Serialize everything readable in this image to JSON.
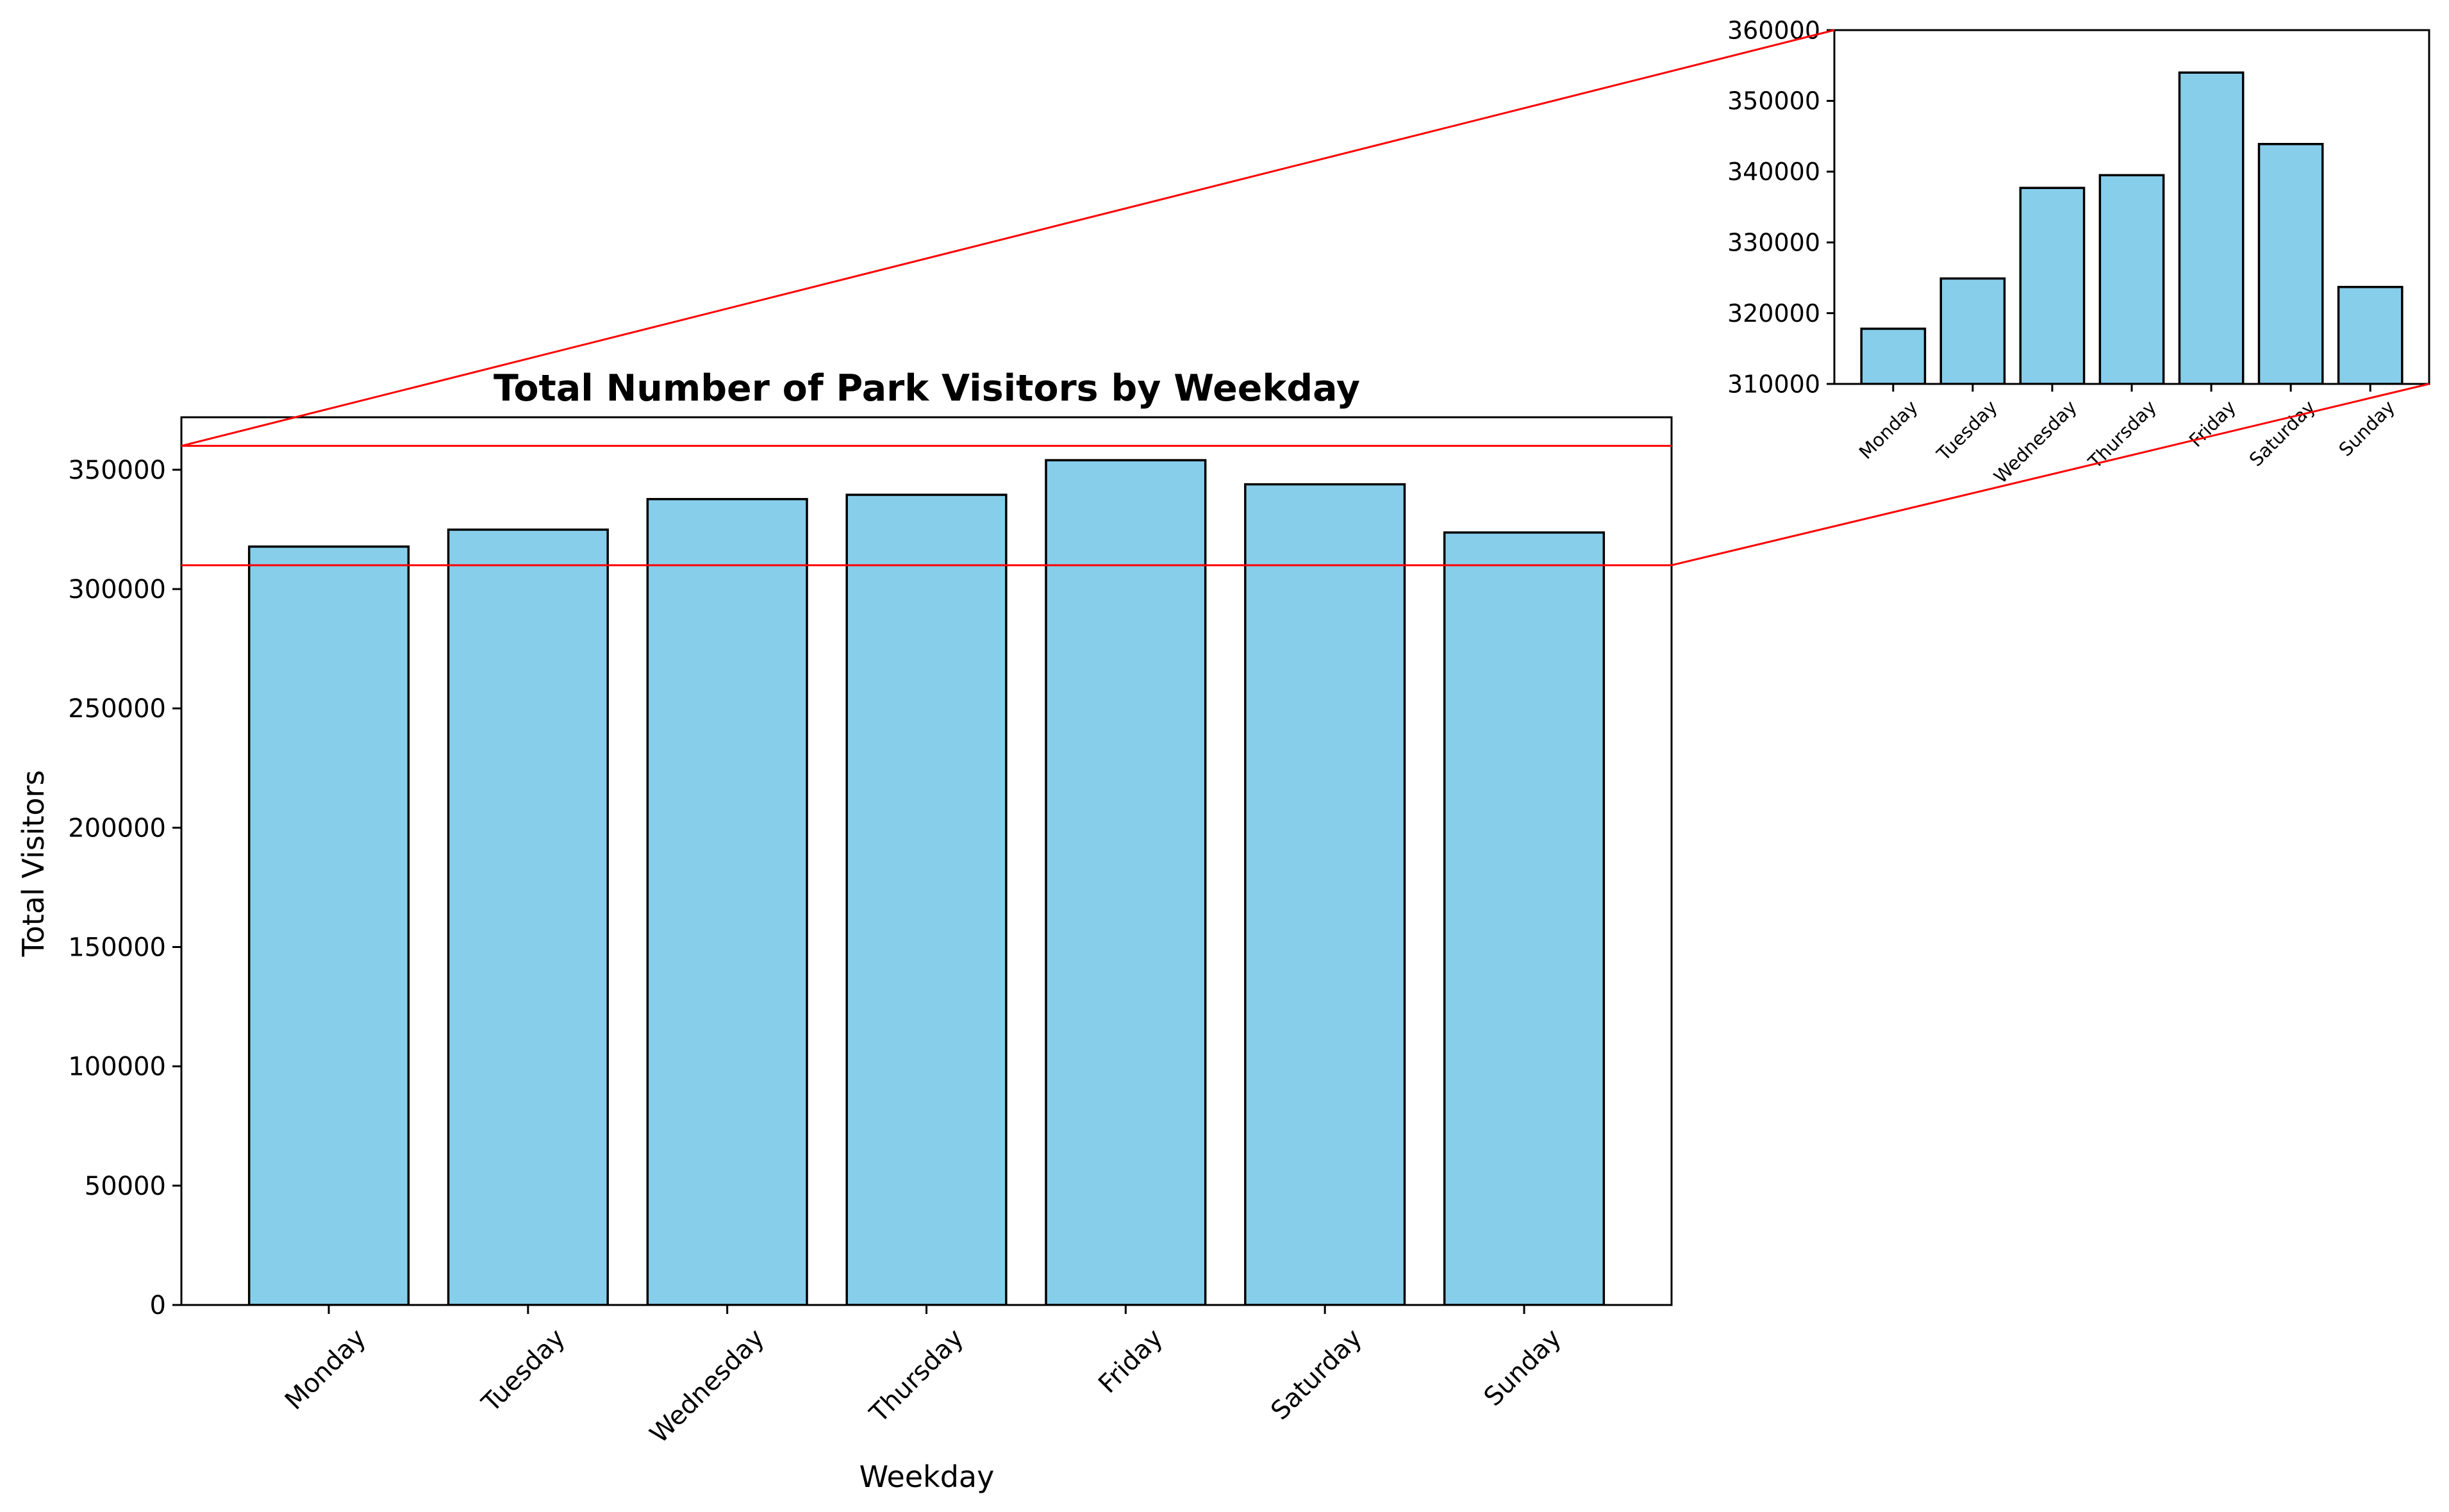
{
  "colors": {
    "bar_fill": "#87CEEB",
    "bar_edge": "#000000",
    "zoom_line": "#ff0000",
    "axis": "#000000"
  },
  "chart_data": [
    {
      "type": "bar",
      "title": "Total Number of Park Visitors by Weekday",
      "xlabel": "Weekday",
      "ylabel": "Total Visitors",
      "categories": [
        "Monday",
        "Tuesday",
        "Wednesday",
        "Thursday",
        "Friday",
        "Saturday",
        "Sunday"
      ],
      "values": [
        317800,
        324900,
        337700,
        339500,
        354000,
        343900,
        323700
      ],
      "ylim": [
        0,
        372000
      ],
      "yticks": [
        0,
        50000,
        100000,
        150000,
        200000,
        250000,
        300000,
        350000
      ],
      "grid": false
    },
    {
      "type": "bar",
      "title": "",
      "xlabel": "",
      "ylabel": "",
      "categories": [
        "Monday",
        "Tuesday",
        "Wednesday",
        "Thursday",
        "Friday",
        "Saturday",
        "Sunday"
      ],
      "values": [
        317800,
        324900,
        337700,
        339500,
        354000,
        343900,
        323700
      ],
      "ylim": [
        310000,
        360000
      ],
      "yticks": [
        310000,
        320000,
        330000,
        340000,
        350000,
        360000
      ],
      "grid": false,
      "zoom_of_main_range": [
        310000,
        360000
      ]
    }
  ]
}
